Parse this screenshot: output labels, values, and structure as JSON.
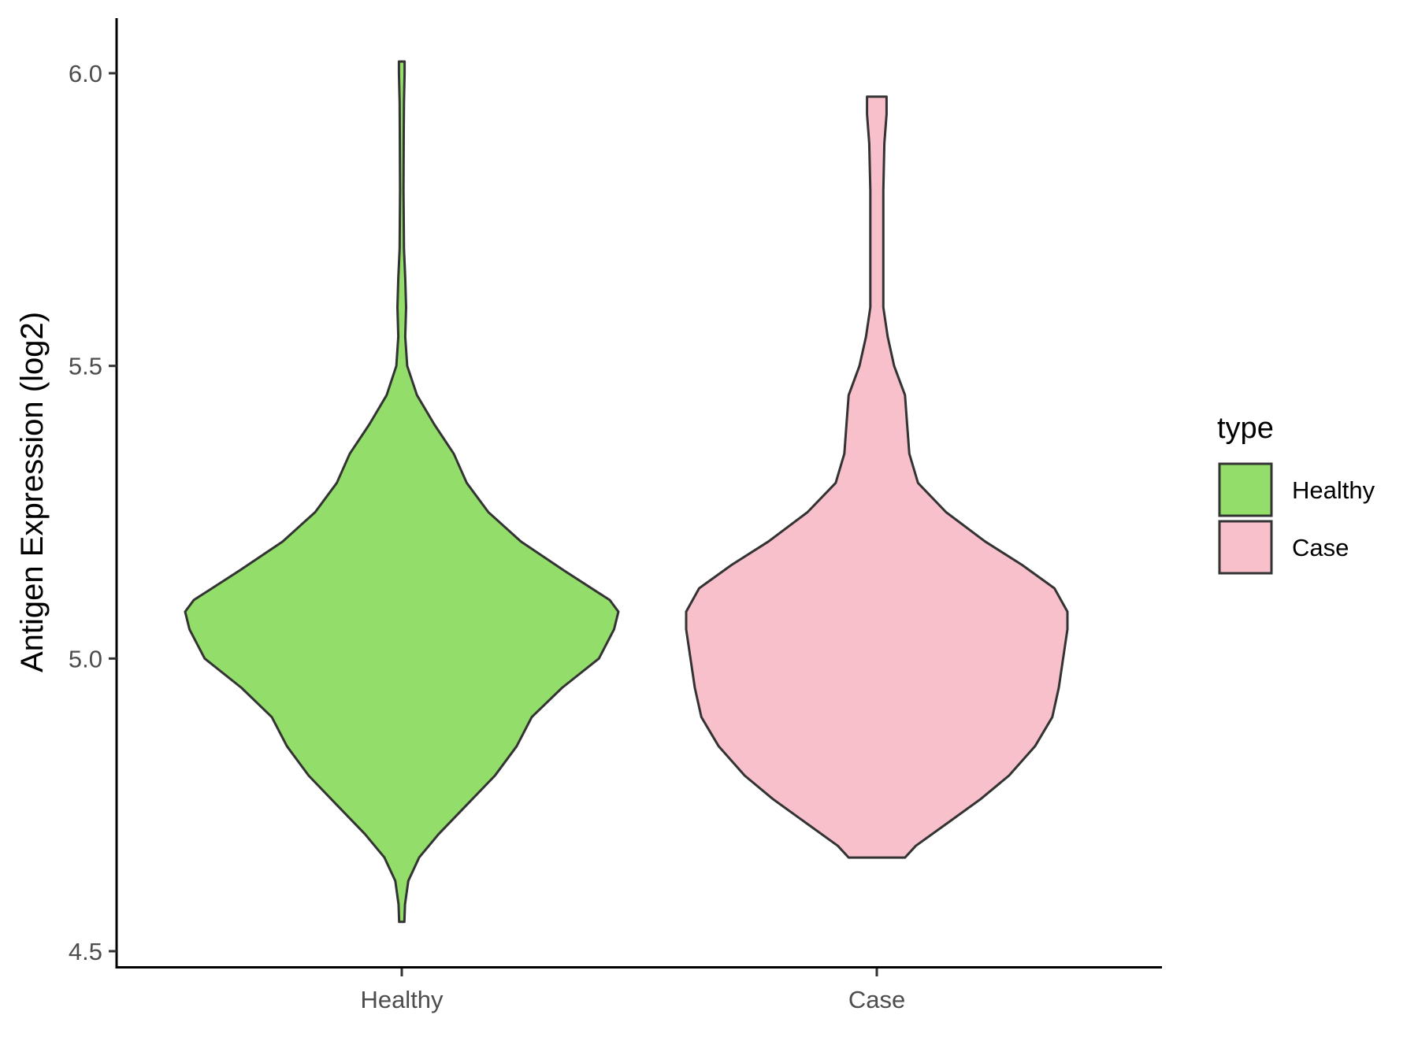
{
  "chart_data": {
    "type": "violin",
    "title": "",
    "xlabel": "",
    "ylabel": "Antigen Expression (log2)",
    "ylim": [
      4.48,
      6.1
    ],
    "yticks": [
      "4.5",
      "5.0",
      "5.5",
      "6.0"
    ],
    "categories": [
      "Healthy",
      "Case"
    ],
    "legend": {
      "title": "type",
      "position": "right",
      "entries": [
        "Healthy",
        "Case"
      ]
    },
    "colors": {
      "Healthy": "#93dd6a",
      "Case": "#f8c0cb",
      "outline": "#333333"
    },
    "series": [
      {
        "name": "Healthy",
        "min": 4.55,
        "max": 6.02,
        "profile": [
          [
            4.55,
            0.012
          ],
          [
            4.58,
            0.015
          ],
          [
            4.62,
            0.03
          ],
          [
            4.66,
            0.08
          ],
          [
            4.7,
            0.17
          ],
          [
            4.75,
            0.3
          ],
          [
            4.8,
            0.43
          ],
          [
            4.85,
            0.53
          ],
          [
            4.9,
            0.6
          ],
          [
            4.95,
            0.74
          ],
          [
            5.0,
            0.91
          ],
          [
            5.05,
            0.98
          ],
          [
            5.08,
            1.0
          ],
          [
            5.1,
            0.96
          ],
          [
            5.15,
            0.75
          ],
          [
            5.2,
            0.55
          ],
          [
            5.25,
            0.4
          ],
          [
            5.3,
            0.3
          ],
          [
            5.35,
            0.24
          ],
          [
            5.4,
            0.15
          ],
          [
            5.45,
            0.07
          ],
          [
            5.5,
            0.025
          ],
          [
            5.55,
            0.016
          ],
          [
            5.6,
            0.02
          ],
          [
            5.65,
            0.016
          ],
          [
            5.7,
            0.01
          ],
          [
            5.8,
            0.008
          ],
          [
            5.9,
            0.009
          ],
          [
            5.95,
            0.01
          ],
          [
            6.0,
            0.013
          ],
          [
            6.02,
            0.013
          ]
        ]
      },
      {
        "name": "Case",
        "min": 4.66,
        "max": 5.96,
        "profile": [
          [
            4.66,
            0.13
          ],
          [
            4.68,
            0.18
          ],
          [
            4.72,
            0.33
          ],
          [
            4.76,
            0.48
          ],
          [
            4.8,
            0.61
          ],
          [
            4.85,
            0.73
          ],
          [
            4.9,
            0.81
          ],
          [
            4.95,
            0.84
          ],
          [
            5.0,
            0.86
          ],
          [
            5.05,
            0.88
          ],
          [
            5.08,
            0.88
          ],
          [
            5.12,
            0.82
          ],
          [
            5.16,
            0.67
          ],
          [
            5.2,
            0.5
          ],
          [
            5.25,
            0.32
          ],
          [
            5.3,
            0.19
          ],
          [
            5.35,
            0.15
          ],
          [
            5.4,
            0.14
          ],
          [
            5.45,
            0.13
          ],
          [
            5.5,
            0.08
          ],
          [
            5.55,
            0.05
          ],
          [
            5.6,
            0.03
          ],
          [
            5.65,
            0.03
          ],
          [
            5.7,
            0.03
          ],
          [
            5.8,
            0.03
          ],
          [
            5.88,
            0.035
          ],
          [
            5.93,
            0.045
          ],
          [
            5.96,
            0.045
          ]
        ]
      }
    ]
  }
}
